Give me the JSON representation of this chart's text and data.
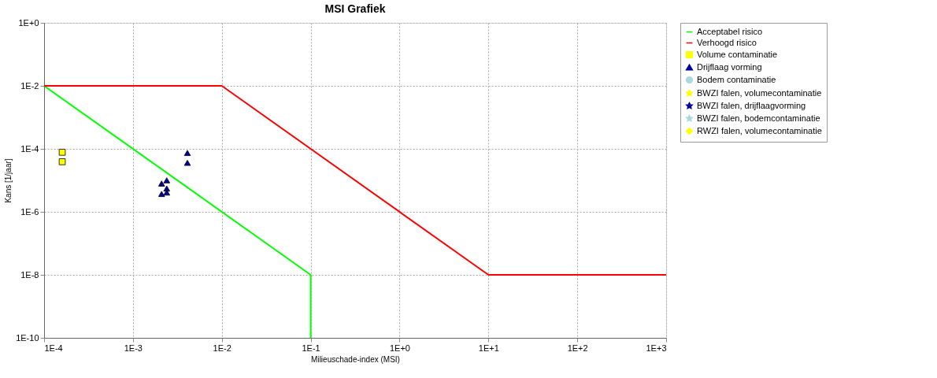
{
  "chart_data": {
    "type": "scatter",
    "title": "MSI Grafiek",
    "xlabel": "Milieuschade-index (MSI)",
    "ylabel": "Kans [1/jaar]",
    "log": "xy",
    "grid": true,
    "legend": "right",
    "xlim": [
      0.0001,
      1000
    ],
    "xticks": [
      {
        "value": 0.0001,
        "label": "1E-4"
      },
      {
        "value": 0.001,
        "label": "1E-3"
      },
      {
        "value": 0.01,
        "label": "1E-2"
      },
      {
        "value": 0.1,
        "label": "1E-1"
      },
      {
        "value": 1,
        "label": "1E+0"
      },
      {
        "value": 10,
        "label": "1E+1"
      },
      {
        "value": 100,
        "label": "1E+2"
      },
      {
        "value": 1000,
        "label": "1E+3"
      }
    ],
    "ylim": [
      1e-10,
      1
    ],
    "yticks": [
      {
        "value": 1e-10,
        "label": "1E-10"
      },
      {
        "value": 1e-08,
        "label": "1E-8"
      },
      {
        "value": 1e-06,
        "label": "1E-6"
      },
      {
        "value": 0.0001,
        "label": "1E-4"
      },
      {
        "value": 0.01,
        "label": "1E-2"
      },
      {
        "value": 1,
        "label": "1E+0"
      }
    ],
    "series": [
      {
        "name": "Acceptabel risico",
        "type": "line",
        "color": "#00ff00",
        "marker": "none",
        "x": [
          0.0001,
          0.1,
          0.1
        ],
        "values": [
          0.01,
          1e-08,
          1e-10
        ]
      },
      {
        "name": "Verhoogd risico",
        "type": "line",
        "color": "#ff0000",
        "marker": "none",
        "x": [
          0.0001,
          0.01,
          10,
          1000
        ],
        "values": [
          0.01,
          0.01,
          1e-08,
          1e-08
        ]
      },
      {
        "name": "Volume contaminatie",
        "color": "#ffff00",
        "marker": "square",
        "x": [
          0.00016,
          0.00016
        ],
        "values": [
          7.8e-05,
          3.9e-05
        ]
      },
      {
        "name": "Drijflaag vorming",
        "color": "#0000a0",
        "marker": "triangle",
        "x": [
          0.0041,
          0.0041,
          0.0021,
          0.0024,
          0.0024,
          0.0021,
          0.0024
        ],
        "values": [
          7.4e-05,
          3.6e-05,
          7.9e-06,
          1e-05,
          5.5e-06,
          3.7e-06,
          4.1e-06
        ]
      },
      {
        "name": "Bodem contaminatie",
        "color": "#a8d8e0",
        "marker": "circle"
      },
      {
        "name": "BWZI falen, volumecontaminatie",
        "color": "#ffff00",
        "marker": "star"
      },
      {
        "name": "BWZI falen, drijflaagvorming",
        "color": "#0000a0",
        "marker": "star"
      },
      {
        "name": "BWZI falen, bodemcontaminatie",
        "color": "#a8d8e0",
        "marker": "star"
      },
      {
        "name": "RWZI falen, volumecontaminatie",
        "color": "#ffff00",
        "marker": "diamond"
      }
    ]
  }
}
